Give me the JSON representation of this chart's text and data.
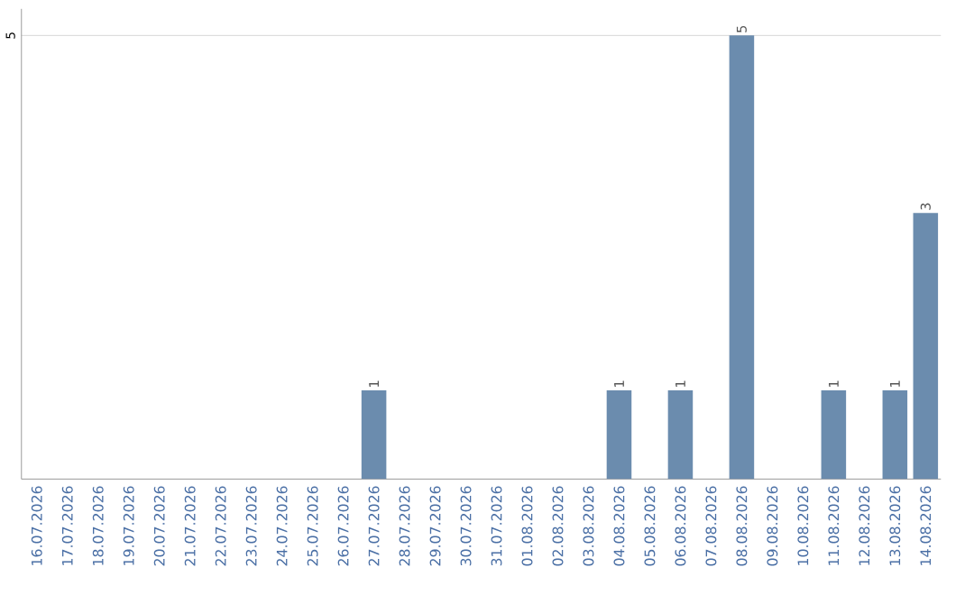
{
  "chart_data": {
    "type": "bar",
    "categories": [
      "16.07.2026",
      "17.07.2026",
      "18.07.2026",
      "19.07.2026",
      "20.07.2026",
      "21.07.2026",
      "22.07.2026",
      "23.07.2026",
      "24.07.2026",
      "25.07.2026",
      "26.07.2026",
      "27.07.2026",
      "28.07.2026",
      "29.07.2026",
      "30.07.2026",
      "31.07.2026",
      "01.08.2026",
      "02.08.2026",
      "03.08.2026",
      "04.08.2026",
      "05.08.2026",
      "06.08.2026",
      "07.08.2026",
      "08.08.2026",
      "09.08.2026",
      "10.08.2026",
      "11.08.2026",
      "12.08.2026",
      "13.08.2026",
      "14.08.2026"
    ],
    "values": [
      0,
      0,
      0,
      0,
      0,
      0,
      0,
      0,
      0,
      0,
      0,
      1,
      0,
      0,
      0,
      0,
      0,
      0,
      0,
      1,
      0,
      1,
      0,
      5,
      0,
      0,
      1,
      0,
      1,
      3
    ],
    "value_labels": [
      null,
      null,
      null,
      null,
      null,
      null,
      null,
      null,
      null,
      null,
      null,
      "1",
      null,
      null,
      null,
      null,
      null,
      null,
      null,
      "1",
      null,
      "1",
      null,
      "5",
      null,
      null,
      "1",
      null,
      "1",
      "3"
    ],
    "color": "#6b8cae",
    "ylim": [
      0,
      5.3
    ],
    "yticks": [
      5
    ],
    "grid": "y"
  }
}
